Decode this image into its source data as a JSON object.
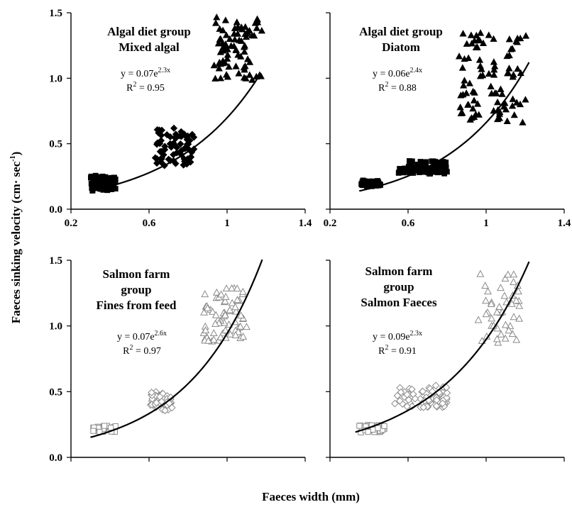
{
  "figure": {
    "ylabel_main": "Faeces sinking velocity (cm· sec",
    "ylabel_sup": "-1",
    "ylabel_close": ")",
    "xlabel": "Faeces width (mm)"
  },
  "chart_data": [
    {
      "type": "scatter",
      "title": [
        "Algal diet group",
        "Mixed algal"
      ],
      "equation": {
        "prefix": "y = 0.07e",
        "exponent": "2.3x",
        "r2_label": "R",
        "r2_sup": "2",
        "r2_value": " = 0.95"
      },
      "fit": {
        "a": 0.07,
        "b": 2.3,
        "x_start": 0.3,
        "x_end": 1.17
      },
      "xlim": [
        0.2,
        1.4
      ],
      "ylim": [
        0.0,
        1.5
      ],
      "xticks": [
        0.2,
        0.6,
        1.0,
        1.4
      ],
      "yticks": [
        0.0,
        0.5,
        1.0,
        1.5
      ],
      "ytick_labels": [
        "0.0",
        "0.5",
        "1.0",
        "1.5"
      ],
      "show_xtick_labels": true,
      "show_ytick_labels": true,
      "clusters": [
        {
          "marker": "square-filled",
          "x_range": [
            0.3,
            0.43
          ],
          "y_range": [
            0.14,
            0.26
          ],
          "count": 70
        },
        {
          "marker": "diamond-filled",
          "x_range": [
            0.63,
            0.83
          ],
          "y_range": [
            0.33,
            0.62
          ],
          "count": 70
        },
        {
          "marker": "triangle-filled",
          "x_range": [
            0.93,
            1.18
          ],
          "y_range": [
            0.97,
            1.47
          ],
          "count": 80
        }
      ]
    },
    {
      "type": "scatter",
      "title": [
        "Algal diet group",
        "Diatom"
      ],
      "equation": {
        "prefix": "y = 0.06e",
        "exponent": "2.4x",
        "r2_label": "R",
        "r2_sup": "2",
        "r2_value": " = 0.88"
      },
      "fit": {
        "a": 0.06,
        "b": 2.4,
        "x_start": 0.35,
        "x_end": 1.22
      },
      "xlim": [
        0.2,
        1.4
      ],
      "ylim": [
        0.0,
        1.5
      ],
      "xticks": [
        0.2,
        0.6,
        1.0,
        1.4
      ],
      "yticks": [
        0.0,
        0.5,
        1.0,
        1.5
      ],
      "ytick_labels": [
        "0.0",
        "0.5",
        "1.0",
        "1.5"
      ],
      "show_xtick_labels": true,
      "show_ytick_labels": false,
      "clusters": [
        {
          "marker": "square-filled",
          "x_range": [
            0.36,
            0.46
          ],
          "y_range": [
            0.17,
            0.22
          ],
          "count": 30
        },
        {
          "marker": "square-filled",
          "x_range": [
            0.55,
            0.8
          ],
          "y_range": [
            0.27,
            0.37
          ],
          "count": 90
        },
        {
          "marker": "triangle-filled",
          "x_range": [
            0.86,
            1.21
          ],
          "y_range": [
            0.66,
            1.35
          ],
          "count": 90
        }
      ]
    },
    {
      "type": "scatter",
      "title": [
        "Salmon farm",
        "group",
        "Fines from feed"
      ],
      "equation": {
        "prefix": "y = 0.07e",
        "exponent": "2.6x",
        "r2_label": "R",
        "r2_sup": "2",
        "r2_value": " = 0.97"
      },
      "fit": {
        "a": 0.07,
        "b": 2.6,
        "x_start": 0.3,
        "x_end": 1.18
      },
      "xlim": [
        0.2,
        1.4
      ],
      "ylim": [
        0.0,
        1.5
      ],
      "xticks": [
        0.2,
        0.6,
        1.0,
        1.4
      ],
      "yticks": [
        0.0,
        0.5,
        1.0,
        1.5
      ],
      "ytick_labels": [
        "0.0",
        "0.5",
        "1.0",
        "1.5"
      ],
      "show_xtick_labels": false,
      "show_ytick_labels": true,
      "clusters": [
        {
          "marker": "square-open",
          "x_range": [
            0.31,
            0.43
          ],
          "y_range": [
            0.19,
            0.24
          ],
          "count": 35
        },
        {
          "marker": "diamond-open",
          "x_range": [
            0.6,
            0.72
          ],
          "y_range": [
            0.35,
            0.5
          ],
          "count": 40
        },
        {
          "marker": "triangle-open",
          "x_range": [
            0.87,
            1.1
          ],
          "y_range": [
            0.87,
            1.3
          ],
          "count": 70
        }
      ]
    },
    {
      "type": "scatter",
      "title": [
        "Salmon farm",
        "group",
        "Salmon Faeces"
      ],
      "equation": {
        "prefix": "y = 0.09e",
        "exponent": "2.3x",
        "r2_label": "R",
        "r2_sup": "2",
        "r2_value": " = 0.91"
      },
      "fit": {
        "a": 0.09,
        "b": 2.3,
        "x_start": 0.33,
        "x_end": 1.22
      },
      "xlim": [
        0.2,
        1.4
      ],
      "ylim": [
        0.0,
        1.5
      ],
      "xticks": [
        0.2,
        0.6,
        1.0,
        1.4
      ],
      "yticks": [
        0.0,
        0.5,
        1.0,
        1.5
      ],
      "ytick_labels": [
        "0.0",
        "0.5",
        "1.0",
        "1.5"
      ],
      "show_xtick_labels": false,
      "show_ytick_labels": false,
      "clusters": [
        {
          "marker": "square-open",
          "x_range": [
            0.35,
            0.48
          ],
          "y_range": [
            0.19,
            0.25
          ],
          "count": 35
        },
        {
          "marker": "diamond-open",
          "x_range": [
            0.53,
            0.8
          ],
          "y_range": [
            0.38,
            0.55
          ],
          "count": 70
        },
        {
          "marker": "triangle-open",
          "x_range": [
            0.96,
            1.17
          ],
          "y_range": [
            0.87,
            1.4
          ],
          "count": 45
        }
      ]
    }
  ]
}
